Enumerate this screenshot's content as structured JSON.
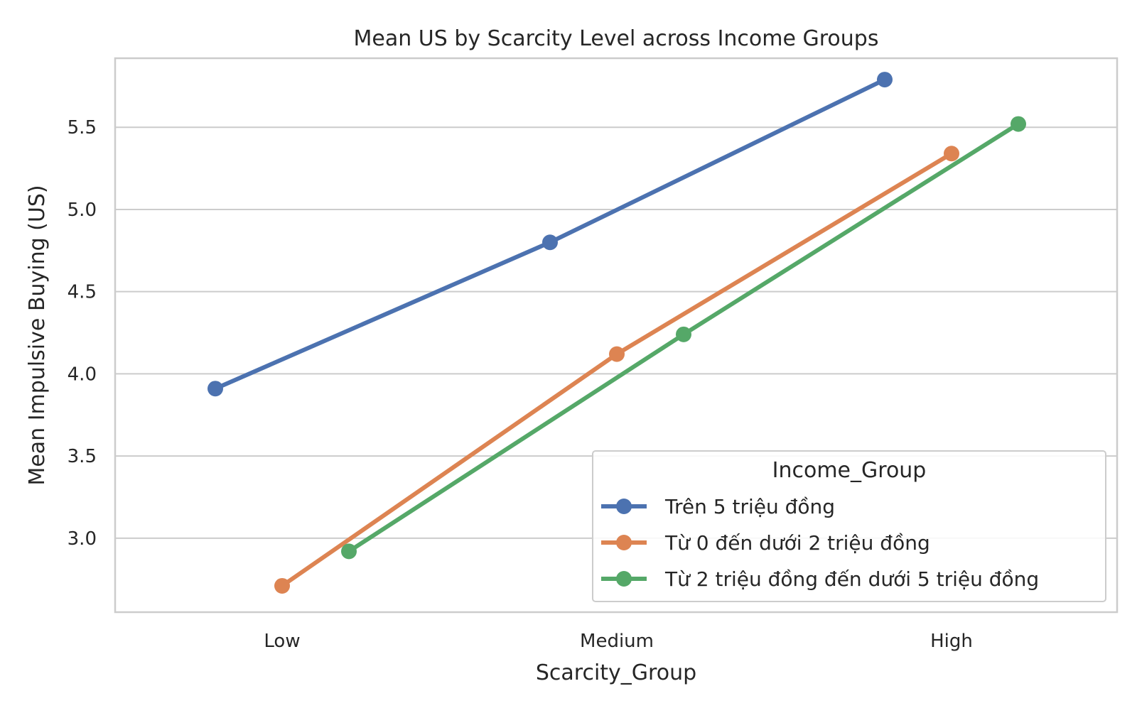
{
  "chart_data": {
    "type": "line",
    "title": "Mean US by Scarcity Level across Income Groups",
    "xlabel": "Scarcity_Group",
    "ylabel": "Mean Impulsive Buying (US)",
    "categories": [
      "Low",
      "Medium",
      "High"
    ],
    "ylim": [
      2.55,
      5.92
    ],
    "yticks": [
      3.0,
      3.5,
      4.0,
      4.5,
      5.0,
      5.5
    ],
    "ytick_labels": [
      "3.0",
      "3.5",
      "4.0",
      "4.5",
      "5.0",
      "5.5"
    ],
    "grid": true,
    "dodge": true,
    "legend": {
      "title": "Income_Group",
      "placement": "lower-right"
    },
    "series": [
      {
        "name": "Trên 5 triệu đồng",
        "color": "#4c72b0",
        "values": [
          3.91,
          4.8,
          5.79
        ]
      },
      {
        "name": "Từ 0 đến dưới 2 triệu đồng",
        "color": "#dd8452",
        "values": [
          2.71,
          4.12,
          5.34
        ]
      },
      {
        "name": "Từ 2 triệu đồng đến dưới 5 triệu đồng",
        "color": "#55a868",
        "values": [
          2.92,
          4.24,
          5.52
        ]
      }
    ]
  }
}
